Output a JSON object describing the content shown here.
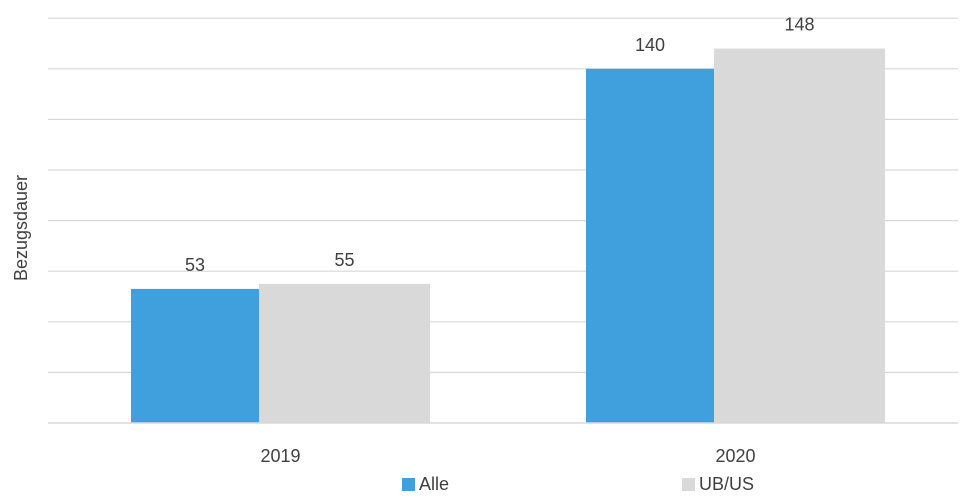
{
  "chart_data": {
    "type": "bar",
    "categories": [
      "2019",
      "2020"
    ],
    "series": [
      {
        "name": "Alle",
        "values": [
          53,
          140
        ],
        "color": "#40A0DE"
      },
      {
        "name": "UB/US",
        "values": [
          55,
          148
        ],
        "color": "#D9D9D9"
      }
    ],
    "title": "",
    "xlabel": "",
    "ylabel": "Bezugsdauer",
    "ylim": [
      0,
      160
    ],
    "grid": true,
    "y_tick_labels_shown": false,
    "data_labels": true,
    "legend_position": "bottom-center"
  }
}
